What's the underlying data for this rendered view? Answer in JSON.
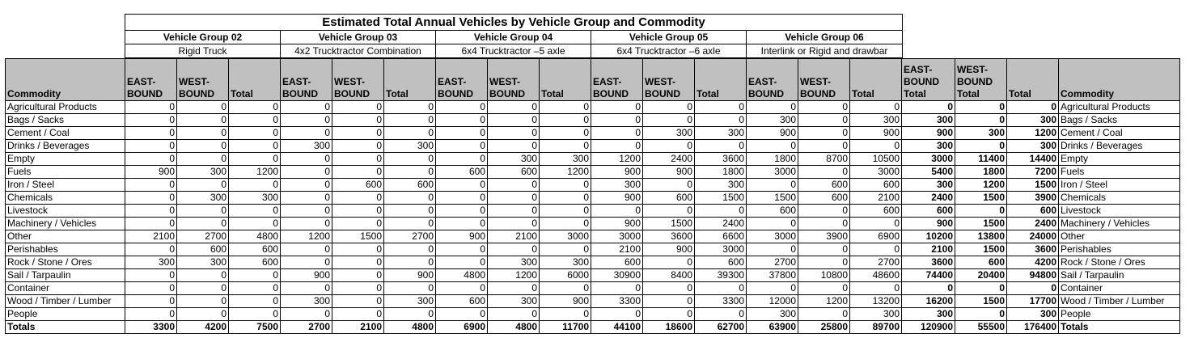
{
  "title": "Estimated Total Annual Vehicles by Vehicle Group and Commodity",
  "groups": [
    {
      "name": "Vehicle Group 02",
      "vehicle": "Rigid Truck"
    },
    {
      "name": "Vehicle Group 03",
      "vehicle": "4x2 Trucktractor Combination"
    },
    {
      "name": "Vehicle Group 04",
      "vehicle": "6x4 Trucktractor –5 axle"
    },
    {
      "name": "Vehicle Group 05",
      "vehicle": "6x4 Trucktractor –6 axle"
    },
    {
      "name": "Vehicle Group 06",
      "vehicle": "Interlink or Rigid and drawbar"
    }
  ],
  "headers": {
    "commodity": "Commodity",
    "eastbound": "EAST-BOUND",
    "westbound": "WEST-BOUND",
    "total": "Total",
    "eastbound_total": "EAST-BOUND Total",
    "westbound_total": "WEST-BOUND Total"
  },
  "rows": [
    {
      "commodity": "Agricultural Products",
      "values": [
        "0",
        "0",
        "0",
        "0",
        "0",
        "0",
        "0",
        "0",
        "0",
        "0",
        "0",
        "0",
        "0",
        "0",
        "0",
        "0",
        "0",
        "0"
      ]
    },
    {
      "commodity": "Bags / Sacks",
      "values": [
        "0",
        "0",
        "0",
        "0",
        "0",
        "0",
        "0",
        "0",
        "0",
        "0",
        "0",
        "0",
        "300",
        "0",
        "300",
        "300",
        "0",
        "300"
      ]
    },
    {
      "commodity": "Cement / Coal",
      "values": [
        "0",
        "0",
        "0",
        "0",
        "0",
        "0",
        "0",
        "0",
        "0",
        "0",
        "300",
        "300",
        "900",
        "0",
        "900",
        "900",
        "300",
        "1200"
      ]
    },
    {
      "commodity": "Drinks / Beverages",
      "values": [
        "0",
        "0",
        "0",
        "300",
        "0",
        "300",
        "0",
        "0",
        "0",
        "0",
        "0",
        "0",
        "0",
        "0",
        "0",
        "300",
        "0",
        "300"
      ]
    },
    {
      "commodity": "Empty",
      "values": [
        "0",
        "0",
        "0",
        "0",
        "0",
        "0",
        "0",
        "300",
        "300",
        "1200",
        "2400",
        "3600",
        "1800",
        "8700",
        "10500",
        "3000",
        "11400",
        "14400"
      ]
    },
    {
      "commodity": "Fuels",
      "values": [
        "900",
        "300",
        "1200",
        "0",
        "0",
        "0",
        "600",
        "600",
        "1200",
        "900",
        "900",
        "1800",
        "3000",
        "0",
        "3000",
        "5400",
        "1800",
        "7200"
      ]
    },
    {
      "commodity": "Iron / Steel",
      "values": [
        "0",
        "0",
        "0",
        "0",
        "600",
        "600",
        "0",
        "0",
        "0",
        "300",
        "0",
        "300",
        "0",
        "600",
        "600",
        "300",
        "1200",
        "1500"
      ]
    },
    {
      "commodity": "Chemicals",
      "values": [
        "0",
        "300",
        "300",
        "0",
        "0",
        "0",
        "0",
        "0",
        "0",
        "900",
        "600",
        "1500",
        "1500",
        "600",
        "2100",
        "2400",
        "1500",
        "3900"
      ]
    },
    {
      "commodity": "Livestock",
      "values": [
        "0",
        "0",
        "0",
        "0",
        "0",
        "0",
        "0",
        "0",
        "0",
        "0",
        "0",
        "0",
        "600",
        "0",
        "600",
        "600",
        "0",
        "600"
      ]
    },
    {
      "commodity": "Machinery / Vehicles",
      "values": [
        "0",
        "0",
        "0",
        "0",
        "0",
        "0",
        "0",
        "0",
        "0",
        "900",
        "1500",
        "2400",
        "0",
        "0",
        "0",
        "900",
        "1500",
        "2400"
      ]
    },
    {
      "commodity": "Other",
      "values": [
        "2100",
        "2700",
        "4800",
        "1200",
        "1500",
        "2700",
        "900",
        "2100",
        "3000",
        "3000",
        "3600",
        "6600",
        "3000",
        "3900",
        "6900",
        "10200",
        "13800",
        "24000"
      ]
    },
    {
      "commodity": "Perishables",
      "values": [
        "0",
        "600",
        "600",
        "0",
        "0",
        "0",
        "0",
        "0",
        "0",
        "2100",
        "900",
        "3000",
        "0",
        "0",
        "0",
        "2100",
        "1500",
        "3600"
      ]
    },
    {
      "commodity": "Rock / Stone / Ores",
      "values": [
        "300",
        "300",
        "600",
        "0",
        "0",
        "0",
        "0",
        "300",
        "300",
        "600",
        "0",
        "600",
        "2700",
        "0",
        "2700",
        "3600",
        "600",
        "4200"
      ]
    },
    {
      "commodity": "Sail / Tarpaulin",
      "values": [
        "0",
        "0",
        "0",
        "900",
        "0",
        "900",
        "4800",
        "1200",
        "6000",
        "30900",
        "8400",
        "39300",
        "37800",
        "10800",
        "48600",
        "74400",
        "20400",
        "94800"
      ]
    },
    {
      "commodity": "Container",
      "values": [
        "0",
        "0",
        "0",
        "0",
        "0",
        "0",
        "0",
        "0",
        "0",
        "0",
        "0",
        "0",
        "0",
        "0",
        "0",
        "0",
        "0",
        "0"
      ]
    },
    {
      "commodity": "Wood / Timber / Lumber",
      "values": [
        "0",
        "0",
        "0",
        "300",
        "0",
        "300",
        "600",
        "300",
        "900",
        "3300",
        "0",
        "3300",
        "12000",
        "1200",
        "13200",
        "16200",
        "1500",
        "17700"
      ]
    },
    {
      "commodity": "People",
      "values": [
        "0",
        "0",
        "0",
        "0",
        "0",
        "0",
        "0",
        "0",
        "0",
        "0",
        "0",
        "0",
        "300",
        "0",
        "300",
        "300",
        "0",
        "300"
      ]
    }
  ],
  "totals": {
    "label": "Totals",
    "values": [
      "3300",
      "4200",
      "7500",
      "2700",
      "2100",
      "4800",
      "6900",
      "4800",
      "11700",
      "44100",
      "18600",
      "62700",
      "63900",
      "25800",
      "89700",
      "120900",
      "55500",
      "176400"
    ]
  }
}
